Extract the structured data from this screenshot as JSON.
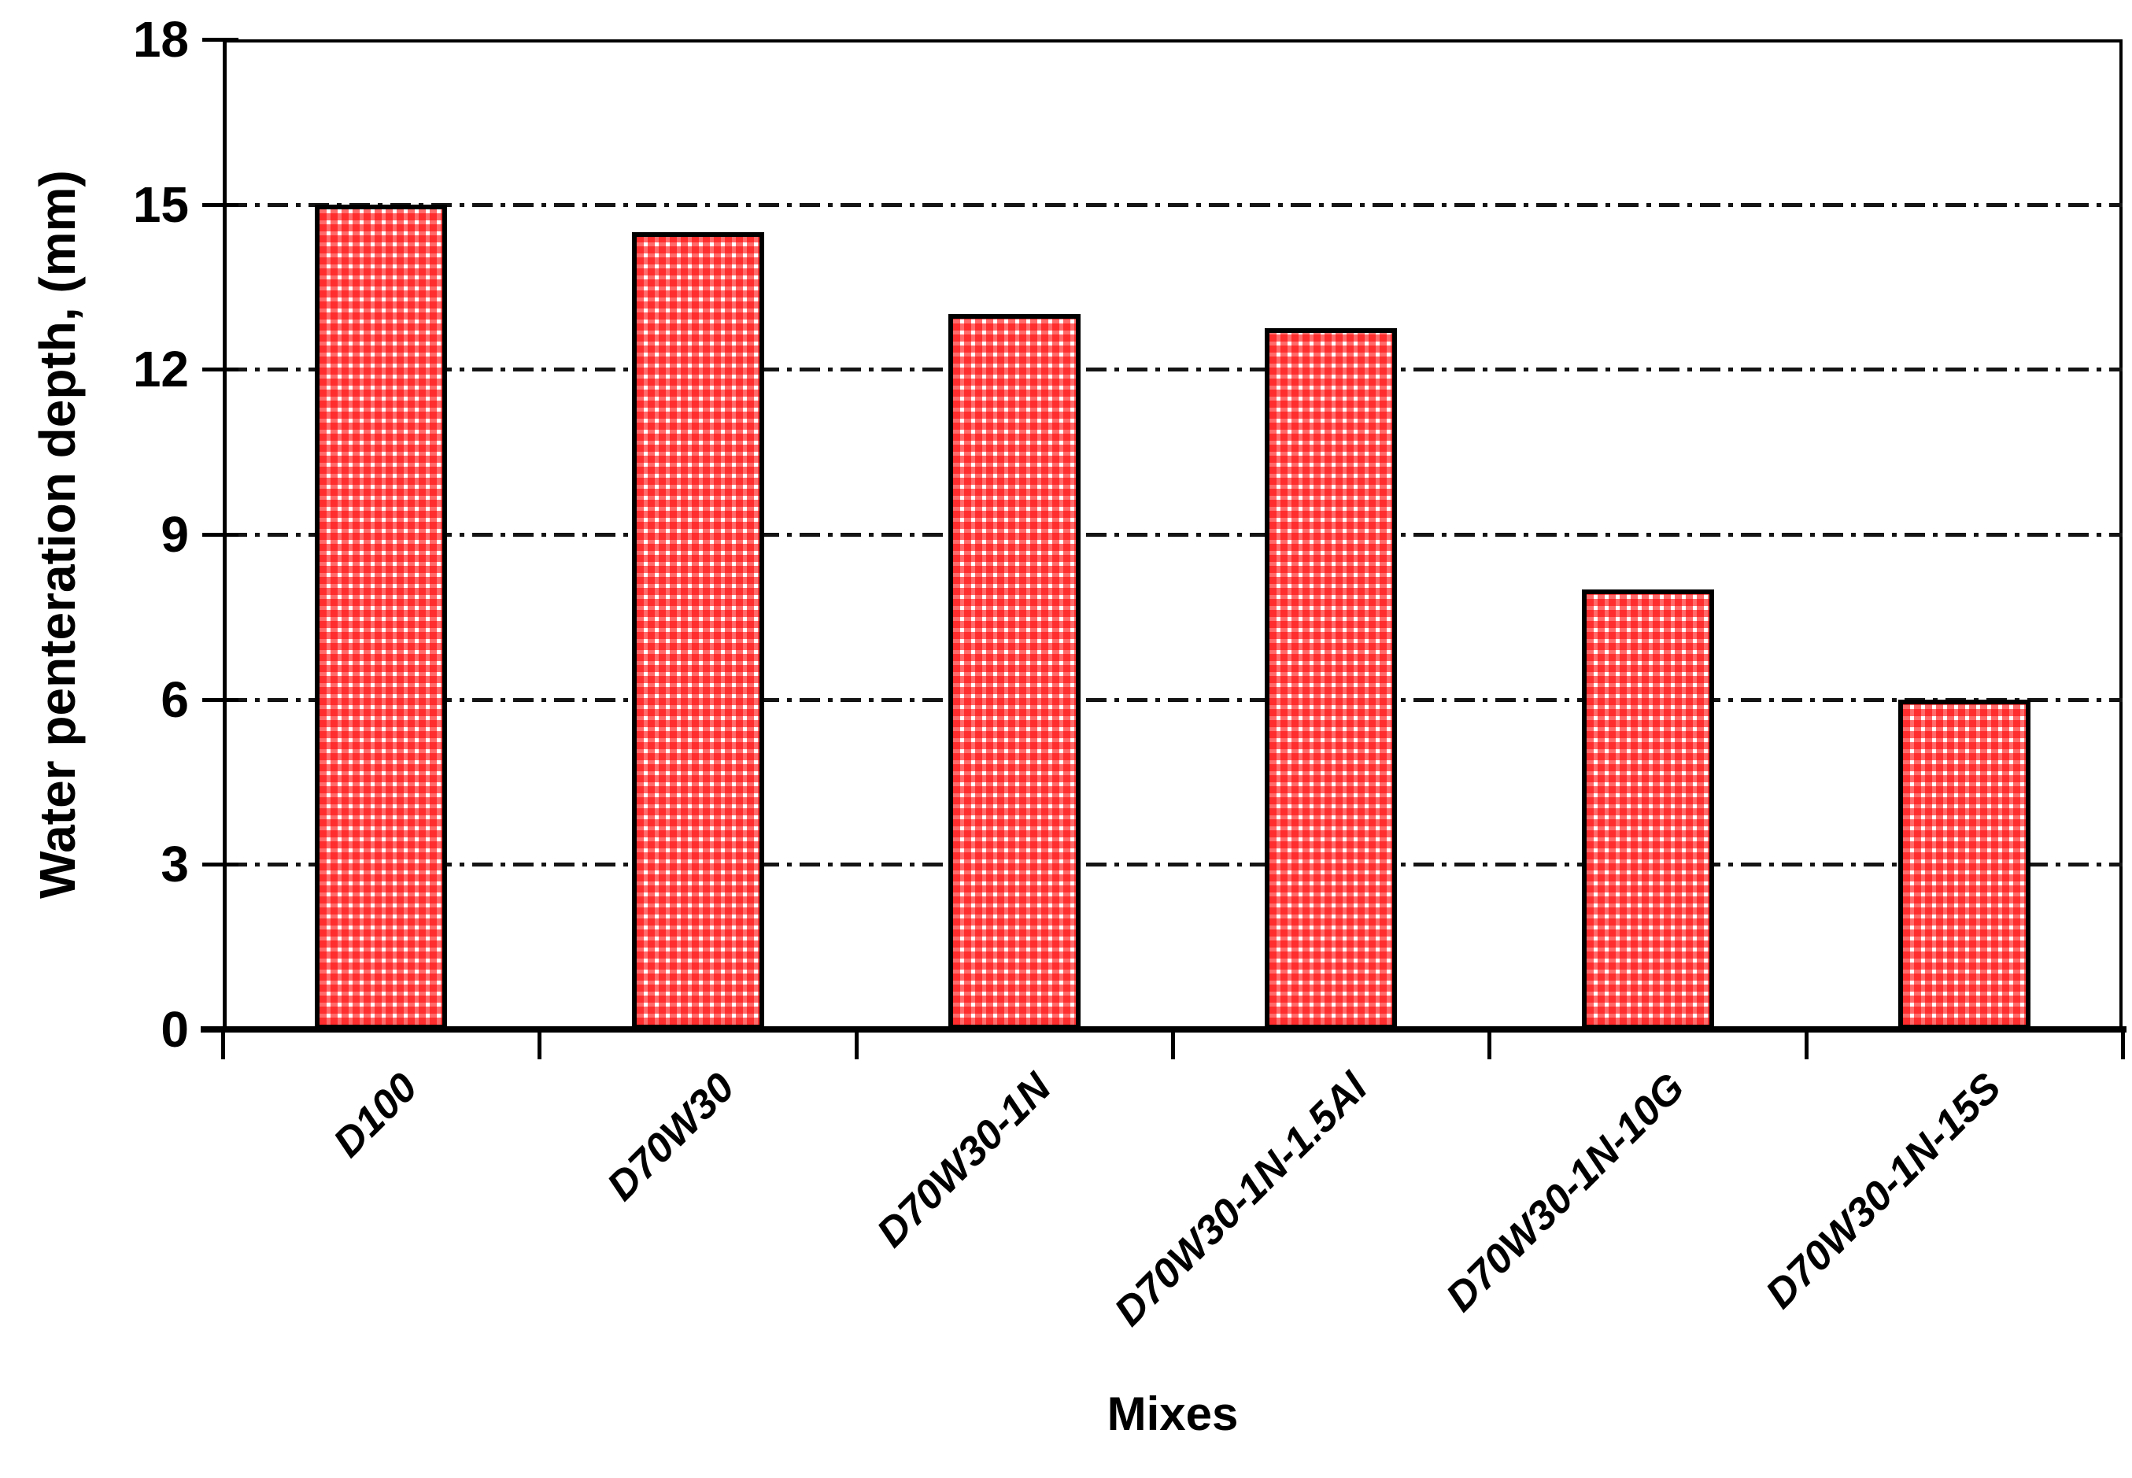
{
  "figure": {
    "background_color": "#ffffff"
  },
  "chart_data": {
    "type": "bar",
    "title": "",
    "categories": [
      "D100",
      "D70W30",
      "D70W30-1N",
      "D70W30-1N-1.5Al",
      "D70W30-1N-10G",
      "D70W30-1N-15S"
    ],
    "values": [
      15,
      14.5,
      13,
      12.75,
      8,
      6
    ],
    "xlabel": "Mixes",
    "ylabel": "Water penteration depth, (mm)",
    "ylim": [
      0,
      18
    ],
    "yticks": [
      0,
      3,
      6,
      9,
      12,
      15,
      18
    ],
    "grid": {
      "horizontal_at": [
        3,
        6,
        9,
        12,
        15
      ],
      "style": "dash-dot",
      "color": "#141414"
    },
    "legend_position": "none",
    "bar_style": {
      "fill_pattern": "red dotted-grid (gingham) on white",
      "pattern_color": "#ff0000",
      "border_color": "#000000"
    }
  }
}
